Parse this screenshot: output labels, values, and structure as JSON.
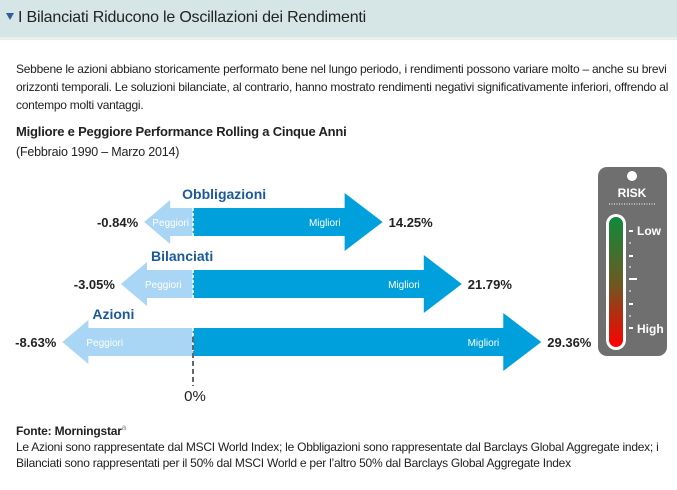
{
  "header": {
    "title": "I Bilanciati Riducono le Oscillazioni dei Rendimenti"
  },
  "intro": "Sebbene le azioni abbiano storicamente performato bene nel lungo periodo, i rendimenti possono variare molto – anche su brevi orizzonti temporali. Le soluzioni bilanciate, al contrario, hanno mostrato rendimenti negativi significativamente inferiori, offrendo al contempo molti vantaggi.",
  "chart_data": {
    "type": "bar",
    "title": "Migliore e Peggiore Performance Rolling a Cinque Anni",
    "subtitle": "(Febbraio 1990 – Marzo 2014)",
    "categories": [
      "Obbligazioni",
      "Bilanciati",
      "Azioni"
    ],
    "series": [
      {
        "name": "Peggiori",
        "values": [
          -0.84,
          -3.05,
          -8.63
        ],
        "labels": [
          "-0.84%",
          "-3.05%",
          "-8.63%"
        ]
      },
      {
        "name": "Migliori",
        "values": [
          14.25,
          21.79,
          29.36
        ],
        "labels": [
          "14.25%",
          "21.79%",
          "29.36%"
        ]
      }
    ],
    "zero_label": "0%",
    "colors": {
      "worst": "#a8d6f4",
      "best": "#00a0dc",
      "category": "#1a5a9a"
    }
  },
  "risk": {
    "title": "RISK",
    "low": "Low",
    "high": "High"
  },
  "footer": {
    "source": "Fonte: Morningstar",
    "source_sup": "a",
    "note": "Le Azioni sono rappresentate dal MSCI World Index; le Obbligazioni sono rappresentate dal Barclays Global Aggregate index; i Bilanciati sono rappresentati per il 50% dal MSCI World e per l’altro 50% dal Barclays Global Aggregate Index"
  }
}
